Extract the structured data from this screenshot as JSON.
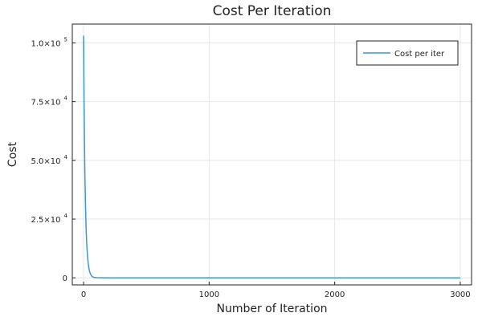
{
  "chart_data": {
    "type": "line",
    "title": "Cost Per Iteration",
    "xlabel": "Number of Iteration",
    "ylabel": "Cost",
    "xlim": [
      -90,
      3090
    ],
    "ylim": [
      -3000,
      108000
    ],
    "x_ticks": [
      0,
      1000,
      2000,
      3000
    ],
    "x_tick_labels": [
      "0",
      "1000",
      "2000",
      "3000"
    ],
    "y_ticks": [
      0,
      25000,
      50000,
      75000,
      100000
    ],
    "y_tick_labels": [
      {
        "mantissa": "0",
        "exp": ""
      },
      {
        "mantissa": "2.5×10",
        "exp": "4"
      },
      {
        "mantissa": "5.0×10",
        "exp": "4"
      },
      {
        "mantissa": "7.5×10",
        "exp": "4"
      },
      {
        "mantissa": "1.0×10",
        "exp": "5"
      }
    ],
    "grid": true,
    "legend_position": "top-right",
    "series": [
      {
        "name": "Cost per iter",
        "color": "#3b96d1",
        "x": [
          0,
          3,
          6,
          10,
          15,
          20,
          25,
          30,
          35,
          40,
          45,
          50,
          60,
          70,
          80,
          100,
          150,
          200,
          500,
          1000,
          1500,
          2000,
          2500,
          3000
        ],
        "y": [
          103000,
          80000,
          62000,
          45000,
          31000,
          21000,
          14500,
          10000,
          7000,
          4800,
          3300,
          2300,
          1100,
          500,
          250,
          80,
          20,
          10,
          5,
          3,
          2,
          2,
          1,
          1
        ]
      }
    ]
  }
}
